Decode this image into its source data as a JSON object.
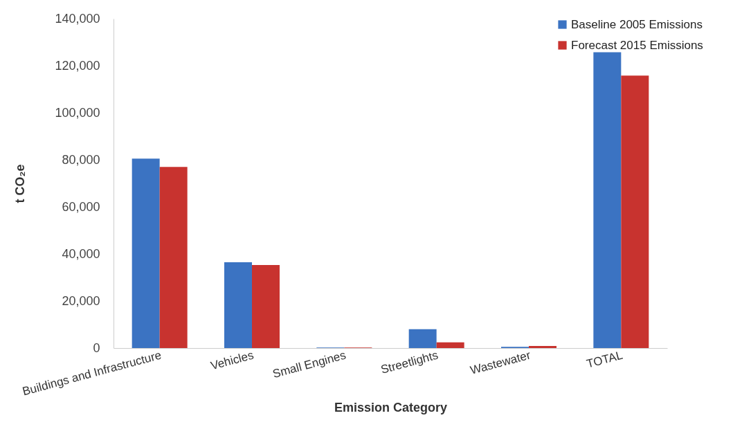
{
  "chart_data": {
    "type": "bar",
    "xlabel": "Emission Category",
    "ylabel": "t CO₂e",
    "categories": [
      "Buildings and Infrastructure",
      "Vehicles",
      "Small Engines",
      "Streetlights",
      "Wastewater",
      "TOTAL"
    ],
    "series": [
      {
        "name": "Baseline 2005 Emissions",
        "color": "#3b73c2",
        "values": [
          80500,
          36500,
          200,
          8000,
          500,
          125700
        ]
      },
      {
        "name": "Forecast 2015 Emissions",
        "color": "#c8332f",
        "values": [
          77000,
          35300,
          200,
          2400,
          900,
          115800
        ]
      }
    ],
    "ylim": [
      0,
      140000
    ],
    "yticks": [
      0,
      {
        "value": 20000,
        "label": "20,000"
      },
      {
        "value": 40000,
        "label": "40,000"
      },
      {
        "value": 60000,
        "label": "60,000"
      },
      {
        "value": 80000,
        "label": "80,000"
      },
      {
        "value": 100000,
        "label": "100,000"
      },
      {
        "value": 120000,
        "label": "120,000"
      },
      {
        "value": 140000,
        "label": "140,000"
      }
    ],
    "grid": false,
    "legend": "top right"
  }
}
